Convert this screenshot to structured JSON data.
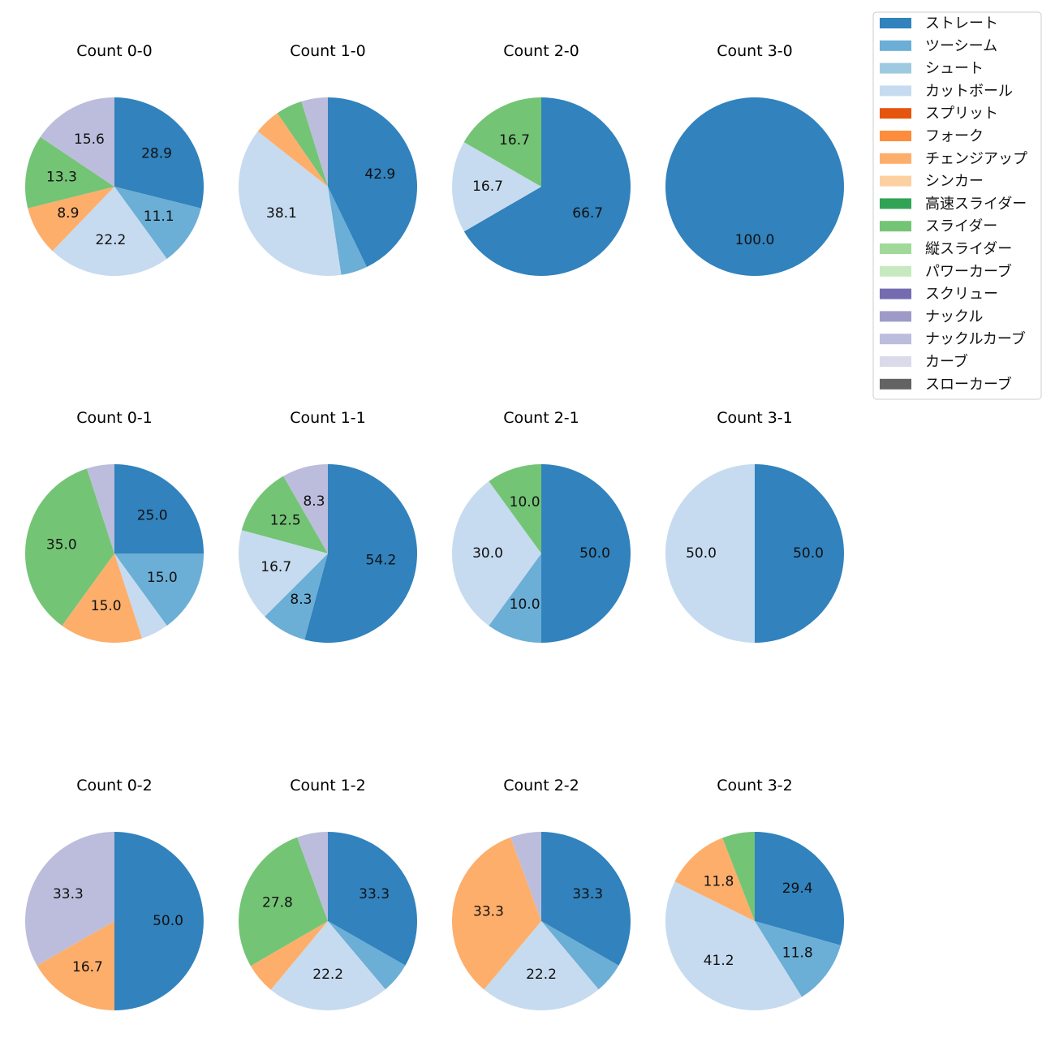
{
  "legend": {
    "items": [
      {
        "label": "ストレート",
        "color": "#3182bd"
      },
      {
        "label": "ツーシーム",
        "color": "#6baed6"
      },
      {
        "label": "シュート",
        "color": "#9ecae1"
      },
      {
        "label": "カットボール",
        "color": "#c6dbef"
      },
      {
        "label": "スプリット",
        "color": "#e6550d"
      },
      {
        "label": "フォーク",
        "color": "#fd8d3c"
      },
      {
        "label": "チェンジアップ",
        "color": "#fdae6b"
      },
      {
        "label": "シンカー",
        "color": "#fdd0a2"
      },
      {
        "label": "高速スライダー",
        "color": "#31a354"
      },
      {
        "label": "スライダー",
        "color": "#74c476"
      },
      {
        "label": "縦スライダー",
        "color": "#a1d99b"
      },
      {
        "label": "パワーカーブ",
        "color": "#c7e9c0"
      },
      {
        "label": "スクリュー",
        "color": "#756bb1"
      },
      {
        "label": "ナックル",
        "color": "#9e9ac8"
      },
      {
        "label": "ナックルカーブ",
        "color": "#bcbddc"
      },
      {
        "label": "カーブ",
        "color": "#dadaeb"
      },
      {
        "label": "スローカーブ",
        "color": "#636363"
      }
    ]
  },
  "chart_data": [
    {
      "type": "pie",
      "title": "Count 0-0",
      "slices": [
        {
          "pitch": "ストレート",
          "value": 28.9,
          "label": "28.9"
        },
        {
          "pitch": "ツーシーム",
          "value": 11.1,
          "label": "11.1"
        },
        {
          "pitch": "カットボール",
          "value": 22.2,
          "label": "22.2"
        },
        {
          "pitch": "チェンジアップ",
          "value": 8.9,
          "label": "8.9"
        },
        {
          "pitch": "スライダー",
          "value": 13.3,
          "label": "13.3"
        },
        {
          "pitch": "ナックルカーブ",
          "value": 15.6,
          "label": "15.6"
        }
      ]
    },
    {
      "type": "pie",
      "title": "Count 1-0",
      "slices": [
        {
          "pitch": "ストレート",
          "value": 42.9,
          "label": "42.9"
        },
        {
          "pitch": "ツーシーム",
          "value": 4.8,
          "label": ""
        },
        {
          "pitch": "カットボール",
          "value": 38.1,
          "label": "38.1"
        },
        {
          "pitch": "チェンジアップ",
          "value": 4.8,
          "label": ""
        },
        {
          "pitch": "スライダー",
          "value": 4.8,
          "label": ""
        },
        {
          "pitch": "ナックルカーブ",
          "value": 4.8,
          "label": ""
        }
      ]
    },
    {
      "type": "pie",
      "title": "Count 2-0",
      "slices": [
        {
          "pitch": "ストレート",
          "value": 66.7,
          "label": "66.7"
        },
        {
          "pitch": "カットボール",
          "value": 16.7,
          "label": "16.7"
        },
        {
          "pitch": "スライダー",
          "value": 16.7,
          "label": "16.7"
        }
      ]
    },
    {
      "type": "pie",
      "title": "Count 3-0",
      "slices": [
        {
          "pitch": "ストレート",
          "value": 100.0,
          "label": "100.0"
        }
      ]
    },
    {
      "type": "pie",
      "title": "Count 0-1",
      "slices": [
        {
          "pitch": "ストレート",
          "value": 25.0,
          "label": "25.0"
        },
        {
          "pitch": "ツーシーム",
          "value": 15.0,
          "label": "15.0"
        },
        {
          "pitch": "カットボール",
          "value": 5.0,
          "label": ""
        },
        {
          "pitch": "チェンジアップ",
          "value": 15.0,
          "label": "15.0"
        },
        {
          "pitch": "スライダー",
          "value": 35.0,
          "label": "35.0"
        },
        {
          "pitch": "ナックルカーブ",
          "value": 5.0,
          "label": ""
        }
      ]
    },
    {
      "type": "pie",
      "title": "Count 1-1",
      "slices": [
        {
          "pitch": "ストレート",
          "value": 54.2,
          "label": "54.2"
        },
        {
          "pitch": "ツーシーム",
          "value": 8.3,
          "label": "8.3"
        },
        {
          "pitch": "カットボール",
          "value": 16.7,
          "label": "16.7"
        },
        {
          "pitch": "スライダー",
          "value": 12.5,
          "label": "12.5"
        },
        {
          "pitch": "ナックルカーブ",
          "value": 8.3,
          "label": "8.3"
        }
      ]
    },
    {
      "type": "pie",
      "title": "Count 2-1",
      "slices": [
        {
          "pitch": "ストレート",
          "value": 50.0,
          "label": "50.0"
        },
        {
          "pitch": "ツーシーム",
          "value": 10.0,
          "label": "10.0"
        },
        {
          "pitch": "カットボール",
          "value": 30.0,
          "label": "30.0"
        },
        {
          "pitch": "スライダー",
          "value": 10.0,
          "label": "10.0"
        }
      ]
    },
    {
      "type": "pie",
      "title": "Count 3-1",
      "slices": [
        {
          "pitch": "ストレート",
          "value": 50.0,
          "label": "50.0"
        },
        {
          "pitch": "カットボール",
          "value": 50.0,
          "label": "50.0"
        }
      ]
    },
    {
      "type": "pie",
      "title": "Count 0-2",
      "slices": [
        {
          "pitch": "ストレート",
          "value": 50.0,
          "label": "50.0"
        },
        {
          "pitch": "チェンジアップ",
          "value": 16.7,
          "label": "16.7"
        },
        {
          "pitch": "ナックルカーブ",
          "value": 33.3,
          "label": "33.3"
        }
      ]
    },
    {
      "type": "pie",
      "title": "Count 1-2",
      "slices": [
        {
          "pitch": "ストレート",
          "value": 33.3,
          "label": "33.3"
        },
        {
          "pitch": "ツーシーム",
          "value": 5.6,
          "label": ""
        },
        {
          "pitch": "カットボール",
          "value": 22.2,
          "label": "22.2"
        },
        {
          "pitch": "チェンジアップ",
          "value": 5.6,
          "label": ""
        },
        {
          "pitch": "スライダー",
          "value": 27.8,
          "label": "27.8"
        },
        {
          "pitch": "ナックルカーブ",
          "value": 5.6,
          "label": ""
        }
      ]
    },
    {
      "type": "pie",
      "title": "Count 2-2",
      "slices": [
        {
          "pitch": "ストレート",
          "value": 33.3,
          "label": "33.3"
        },
        {
          "pitch": "ツーシーム",
          "value": 5.6,
          "label": ""
        },
        {
          "pitch": "カットボール",
          "value": 22.2,
          "label": "22.2"
        },
        {
          "pitch": "チェンジアップ",
          "value": 33.3,
          "label": "33.3"
        },
        {
          "pitch": "ナックルカーブ",
          "value": 5.6,
          "label": ""
        }
      ]
    },
    {
      "type": "pie",
      "title": "Count 3-2",
      "slices": [
        {
          "pitch": "ストレート",
          "value": 29.4,
          "label": "29.4"
        },
        {
          "pitch": "ツーシーム",
          "value": 11.8,
          "label": "11.8"
        },
        {
          "pitch": "カットボール",
          "value": 41.2,
          "label": "41.2"
        },
        {
          "pitch": "チェンジアップ",
          "value": 11.8,
          "label": "11.8"
        },
        {
          "pitch": "スライダー",
          "value": 5.9,
          "label": ""
        }
      ]
    }
  ]
}
